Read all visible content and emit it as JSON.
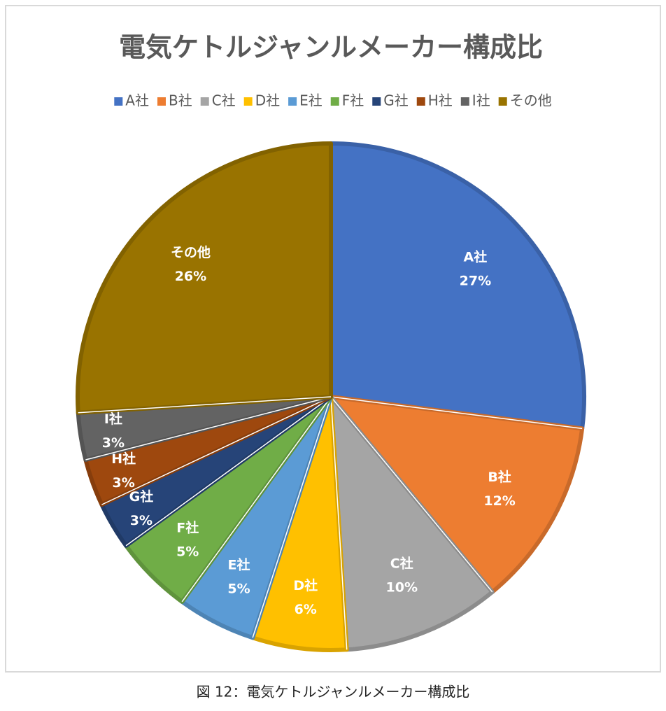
{
  "chart_data": {
    "type": "pie",
    "title": "電気ケトルジャンルメーカー構成比",
    "categories": [
      "A社",
      "B社",
      "C社",
      "D社",
      "E社",
      "F社",
      "G社",
      "H社",
      "I社",
      "その他"
    ],
    "values": [
      27,
      12,
      10,
      6,
      5,
      5,
      3,
      3,
      3,
      26
    ],
    "value_labels": [
      "27%",
      "12%",
      "10%",
      "6%",
      "5%",
      "5%",
      "3%",
      "3%",
      "3%",
      "26%"
    ],
    "colors": [
      "#4472c4",
      "#ed7d31",
      "#a5a5a5",
      "#ffc000",
      "#5b9bd5",
      "#70ad47",
      "#264478",
      "#9e480e",
      "#636363",
      "#997300"
    ],
    "legend": "top"
  },
  "caption": "図 12：電気ケトルジャンルメーカー構成比"
}
